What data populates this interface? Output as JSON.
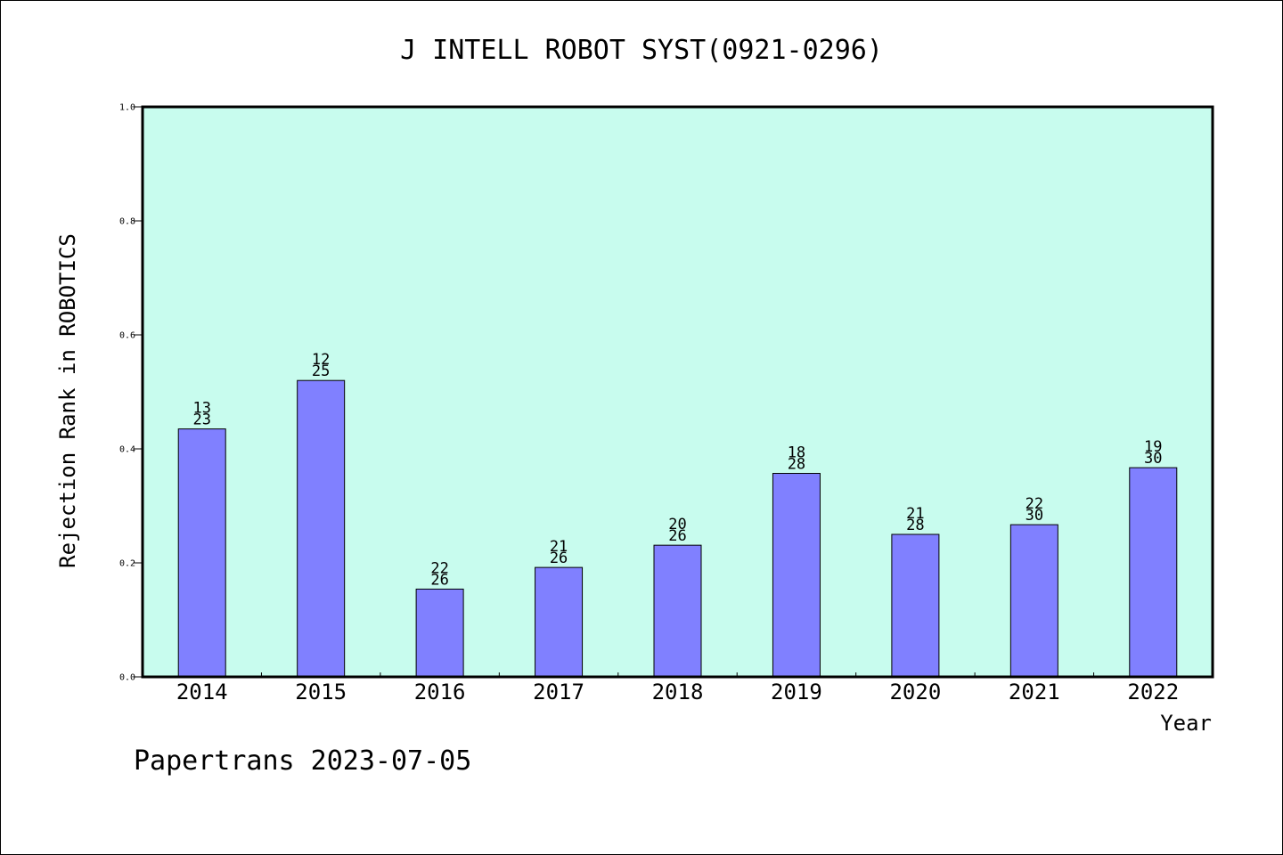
{
  "chart_data": {
    "type": "bar",
    "title": "J INTELL ROBOT SYST(0921-0296)",
    "xlabel": "Year",
    "ylabel": "Rejection Rank in ROBOTICS",
    "ylim": [
      0,
      1.0
    ],
    "yticks": [
      "0.0",
      "0.2",
      "0.4",
      "0.6",
      "0.8",
      "1.0"
    ],
    "categories": [
      "2014",
      "2015",
      "2016",
      "2017",
      "2018",
      "2019",
      "2020",
      "2021",
      "2022"
    ],
    "values": [
      0.435,
      0.52,
      0.154,
      0.192,
      0.231,
      0.357,
      0.25,
      0.267,
      0.367
    ],
    "labels_top": [
      "13",
      "12",
      "22",
      "21",
      "20",
      "18",
      "21",
      "22",
      "19"
    ],
    "labels_bottom": [
      "23",
      "25",
      "26",
      "26",
      "26",
      "28",
      "28",
      "30",
      "30"
    ],
    "grid": false,
    "colors": {
      "plot_bg": "#c8fcee",
      "bar": "#8080ff",
      "bar_edge": "#000000"
    }
  },
  "footer": "Papertrans 2023-07-05"
}
